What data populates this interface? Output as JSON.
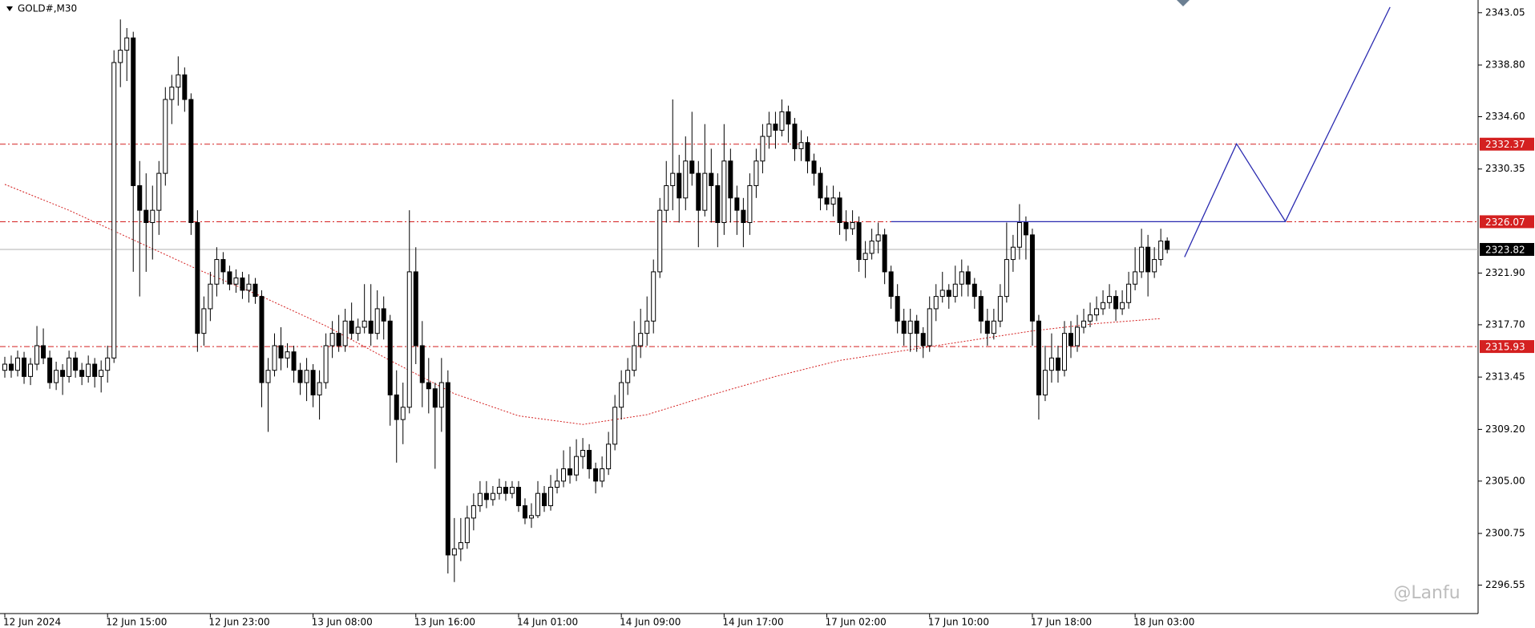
{
  "chart_data": {
    "type": "candlestick",
    "title": "GOLD#,M30",
    "watermark": "@Lanfu",
    "ylim": [
      2294.24,
      2344.08
    ],
    "yticks": [
      2343.05,
      {
        "value": 2338.8,
        "label": "2338.80"
      },
      {
        "value": 2334.6,
        "label": "2334.60"
      },
      2330.35,
      {
        "value": 2321.9,
        "label": "2321.90"
      },
      {
        "value": 2317.7,
        "label": "2317.70"
      },
      2313.45,
      {
        "value": 2309.2,
        "label": "2309.20"
      },
      {
        "value": 2305,
        "label": "2305.00"
      },
      2300.75,
      2296.55
    ],
    "categories": [
      "12 Jun 2024",
      null,
      null,
      null,
      null,
      null,
      null,
      null,
      null,
      null,
      null,
      null,
      null,
      null,
      null,
      null,
      "12 Jun 15:00",
      null,
      null,
      null,
      null,
      null,
      null,
      null,
      null,
      null,
      null,
      null,
      null,
      null,
      null,
      null,
      "12 Jun 23:00",
      null,
      null,
      null,
      null,
      null,
      null,
      null,
      null,
      null,
      null,
      null,
      null,
      null,
      null,
      null,
      "13 Jun 08:00",
      null,
      null,
      null,
      null,
      null,
      null,
      null,
      null,
      null,
      null,
      null,
      null,
      null,
      null,
      null,
      "13 Jun 16:00",
      null,
      null,
      null,
      null,
      null,
      null,
      null,
      null,
      null,
      null,
      null,
      null,
      null,
      null,
      null,
      "14 Jun 01:00",
      null,
      null,
      null,
      null,
      null,
      null,
      null,
      null,
      null,
      null,
      null,
      null,
      null,
      null,
      null,
      "14 Jun 09:00",
      null,
      null,
      null,
      null,
      null,
      null,
      null,
      null,
      null,
      null,
      null,
      null,
      null,
      null,
      null,
      "14 Jun 17:00",
      null,
      null,
      null,
      null,
      null,
      null,
      null,
      null,
      null,
      null,
      null,
      null,
      null,
      null,
      null,
      "17 Jun 02:00",
      null,
      null,
      null,
      null,
      null,
      null,
      null,
      null,
      null,
      null,
      null,
      null,
      null,
      null,
      null,
      "17 Jun 10:00",
      null,
      null,
      null,
      null,
      null,
      null,
      null,
      null,
      null,
      null,
      null,
      null,
      null,
      null,
      null,
      "17 Jun 18:00",
      null,
      null,
      null,
      null,
      null,
      null,
      null,
      null,
      null,
      null,
      null,
      null,
      null,
      null,
      null,
      "18 Jun 03:00",
      null,
      null,
      null,
      null,
      null
    ],
    "ohlc": [
      [
        2314,
        2315.1,
        2313.4,
        2314.5
      ],
      [
        2314.5,
        2315.2,
        2313.4,
        2314
      ],
      [
        2314,
        2315.6,
        2313.5,
        2315
      ],
      [
        2315,
        2315.5,
        2312.9,
        2313.5
      ],
      [
        2313.5,
        2315,
        2312.8,
        2314.5
      ],
      [
        2314.5,
        2317.6,
        2314,
        2316
      ],
      [
        2316,
        2317.4,
        2314.5,
        2315
      ],
      [
        2315,
        2315.6,
        2312.5,
        2313
      ],
      [
        2313,
        2314.7,
        2312.4,
        2314
      ],
      [
        2314,
        2314.5,
        2312,
        2313.5
      ],
      [
        2313.5,
        2315.6,
        2313,
        2315
      ],
      [
        2315,
        2315.5,
        2313.4,
        2314
      ],
      [
        2314,
        2314.6,
        2312.8,
        2313.5
      ],
      [
        2313.5,
        2315.2,
        2313,
        2314.5
      ],
      [
        2314.5,
        2315,
        2312.6,
        2313.5
      ],
      [
        2313.5,
        2314.8,
        2312.2,
        2314
      ],
      [
        2314,
        2316,
        2313,
        2315
      ],
      [
        2315,
        2340,
        2314.6,
        2339
      ],
      [
        2339,
        2342.5,
        2337,
        2340
      ],
      [
        2340,
        2341.8,
        2337.5,
        2341
      ],
      [
        2341,
        2341.5,
        2322,
        2329
      ],
      [
        2329,
        2331,
        2320,
        2327
      ],
      [
        2327,
        2330,
        2322,
        2326
      ],
      [
        2326,
        2329,
        2323,
        2327
      ],
      [
        2327,
        2331,
        2325,
        2330
      ],
      [
        2330,
        2337,
        2329,
        2336
      ],
      [
        2336,
        2338,
        2334,
        2337
      ],
      [
        2337,
        2339.5,
        2335.5,
        2338
      ],
      [
        2338,
        2338.6,
        2335,
        2336
      ],
      [
        2336,
        2336.5,
        2325,
        2326
      ],
      [
        2326,
        2327,
        2315.5,
        2317
      ],
      [
        2317,
        2320,
        2316,
        2319
      ],
      [
        2319,
        2322,
        2318,
        2321
      ],
      [
        2321,
        2324,
        2320,
        2323
      ],
      [
        2323,
        2323.6,
        2321,
        2322
      ],
      [
        2322,
        2322.5,
        2320.5,
        2321
      ],
      [
        2321,
        2322.2,
        2320.3,
        2321.5
      ],
      [
        2321.5,
        2322,
        2319.8,
        2320.5
      ],
      [
        2320.5,
        2321.8,
        2319.5,
        2321
      ],
      [
        2321,
        2321.5,
        2319.4,
        2320
      ],
      [
        2320,
        2320.5,
        2311,
        2313
      ],
      [
        2313,
        2315,
        2309,
        2314
      ],
      [
        2314,
        2317,
        2313.5,
        2316
      ],
      [
        2316,
        2317.5,
        2314,
        2315
      ],
      [
        2315,
        2316.2,
        2314.2,
        2315.5
      ],
      [
        2315.5,
        2316,
        2313,
        2314
      ],
      [
        2314,
        2314.6,
        2312,
        2313
      ],
      [
        2313,
        2315,
        2311.5,
        2314
      ],
      [
        2314,
        2314.5,
        2311,
        2312
      ],
      [
        2312,
        2314,
        2310,
        2313
      ],
      [
        2313,
        2317,
        2312.5,
        2316
      ],
      [
        2316,
        2318,
        2315,
        2317
      ],
      [
        2317,
        2318.5,
        2315.5,
        2316
      ],
      [
        2316,
        2319,
        2315.5,
        2318
      ],
      [
        2318,
        2319.5,
        2316.5,
        2317
      ],
      [
        2317,
        2318.2,
        2316.4,
        2317.5
      ],
      [
        2317.5,
        2321,
        2317,
        2318
      ],
      [
        2318,
        2321,
        2316,
        2317
      ],
      [
        2317,
        2320.5,
        2316.5,
        2319
      ],
      [
        2319,
        2320,
        2316.5,
        2318
      ],
      [
        2318,
        2318.5,
        2309.5,
        2312
      ],
      [
        2312,
        2314,
        2306.5,
        2310
      ],
      [
        2310,
        2313,
        2308,
        2311
      ],
      [
        2311,
        2327,
        2310.5,
        2322
      ],
      [
        2322,
        2324,
        2314.5,
        2316
      ],
      [
        2316,
        2318,
        2311,
        2313
      ],
      [
        2313,
        2315,
        2310.5,
        2312.5
      ],
      [
        2312.5,
        2313,
        2306,
        2311
      ],
      [
        2311,
        2315,
        2309,
        2313
      ],
      [
        2313,
        2314,
        2297.5,
        2299
      ],
      [
        2299,
        2302,
        2296.8,
        2299.5
      ],
      [
        2299.5,
        2302,
        2298.5,
        2300
      ],
      [
        2300,
        2303,
        2299.5,
        2302
      ],
      [
        2302,
        2304,
        2301,
        2303
      ],
      [
        2303,
        2305,
        2302.5,
        2304
      ],
      [
        2304,
        2305,
        2302.8,
        2303.5
      ],
      [
        2303.5,
        2304.6,
        2303,
        2304
      ],
      [
        2304,
        2305.2,
        2303.5,
        2304.5
      ],
      [
        2304.5,
        2305,
        2303.4,
        2304
      ],
      [
        2304,
        2305,
        2303.6,
        2304.5
      ],
      [
        2304.5,
        2305,
        2302.5,
        2303
      ],
      [
        2303,
        2303.6,
        2301.5,
        2302
      ],
      [
        2302,
        2303.2,
        2301.2,
        2302.2
      ],
      [
        2302.2,
        2305,
        2302,
        2304
      ],
      [
        2304,
        2304.6,
        2302.5,
        2303
      ],
      [
        2303,
        2305.5,
        2302.6,
        2304.5
      ],
      [
        2304.5,
        2306,
        2304,
        2305
      ],
      [
        2305,
        2307.5,
        2304.5,
        2306
      ],
      [
        2306,
        2307.8,
        2304.8,
        2305.5
      ],
      [
        2305.5,
        2308.4,
        2305,
        2307
      ],
      [
        2307,
        2308.5,
        2306,
        2307.5
      ],
      [
        2307.5,
        2308,
        2305.2,
        2306
      ],
      [
        2306,
        2306.5,
        2304,
        2305
      ],
      [
        2305,
        2307,
        2304.5,
        2306
      ],
      [
        2306,
        2309,
        2305.5,
        2308
      ],
      [
        2308,
        2312,
        2307.5,
        2311
      ],
      [
        2311,
        2314,
        2310,
        2313
      ],
      [
        2313,
        2315,
        2312,
        2314
      ],
      [
        2314,
        2318,
        2313.5,
        2316
      ],
      [
        2316,
        2319,
        2315,
        2317
      ],
      [
        2317,
        2320,
        2316,
        2318
      ],
      [
        2318,
        2323,
        2317,
        2322
      ],
      [
        2322,
        2328,
        2321.5,
        2327
      ],
      [
        2327,
        2331,
        2326,
        2329
      ],
      [
        2329,
        2336,
        2327,
        2330
      ],
      [
        2330,
        2331.5,
        2326,
        2328
      ],
      [
        2328,
        2333,
        2327,
        2331
      ],
      [
        2331,
        2335,
        2329,
        2330
      ],
      [
        2330,
        2331,
        2324,
        2327
      ],
      [
        2327,
        2334,
        2326.5,
        2330
      ],
      [
        2330,
        2332,
        2326,
        2329
      ],
      [
        2329,
        2330,
        2324,
        2326
      ],
      [
        2326,
        2334,
        2325,
        2331
      ],
      [
        2331,
        2332,
        2326,
        2328
      ],
      [
        2328,
        2329,
        2325,
        2327
      ],
      [
        2327,
        2328,
        2324,
        2326
      ],
      [
        2326,
        2330,
        2325,
        2329
      ],
      [
        2329,
        2332,
        2328,
        2331
      ],
      [
        2331,
        2334,
        2330,
        2333
      ],
      [
        2333,
        2335,
        2332,
        2334
      ],
      [
        2334,
        2335,
        2332,
        2333.5
      ],
      [
        2333.5,
        2336,
        2333,
        2335
      ],
      [
        2335,
        2335.5,
        2332.5,
        2334
      ],
      [
        2334,
        2334.5,
        2331,
        2332
      ],
      [
        2332,
        2333.5,
        2331,
        2332.5
      ],
      [
        2332.5,
        2333,
        2330,
        2331
      ],
      [
        2331,
        2331.6,
        2329,
        2330
      ],
      [
        2330,
        2330.5,
        2327,
        2328
      ],
      [
        2328,
        2329,
        2327,
        2327.5
      ],
      [
        2327.5,
        2329,
        2326.5,
        2328
      ],
      [
        2328,
        2328.5,
        2325,
        2326
      ],
      [
        2326,
        2327,
        2324.5,
        2325.5
      ],
      [
        2325.5,
        2327,
        2325,
        2326
      ],
      [
        2326,
        2326.5,
        2322,
        2323
      ],
      [
        2323,
        2324.5,
        2321.5,
        2323.5
      ],
      [
        2323.5,
        2325.5,
        2323,
        2324.5
      ],
      [
        2324.5,
        2326,
        2323.5,
        2325
      ],
      [
        2325,
        2325.5,
        2321,
        2322
      ],
      [
        2322,
        2322.5,
        2319,
        2320
      ],
      [
        2320,
        2321,
        2317,
        2318
      ],
      [
        2318,
        2319,
        2316,
        2317
      ],
      [
        2317,
        2319,
        2315.5,
        2318
      ],
      [
        2318,
        2318.5,
        2315.5,
        2317
      ],
      [
        2317,
        2317.5,
        2315,
        2316
      ],
      [
        2316,
        2320,
        2315.5,
        2319
      ],
      [
        2319,
        2321,
        2318,
        2320
      ],
      [
        2320,
        2322,
        2319.5,
        2320.5
      ],
      [
        2320.5,
        2321,
        2319,
        2320
      ],
      [
        2320,
        2322.5,
        2319.5,
        2321
      ],
      [
        2321,
        2323,
        2320,
        2322
      ],
      [
        2322,
        2322.5,
        2320,
        2321
      ],
      [
        2321,
        2321.5,
        2319,
        2320
      ],
      [
        2320,
        2320.5,
        2317,
        2318
      ],
      [
        2318,
        2319,
        2316,
        2317
      ],
      [
        2317,
        2319,
        2316.5,
        2318
      ],
      [
        2318,
        2321,
        2317.5,
        2320
      ],
      [
        2320,
        2326,
        2319.5,
        2323
      ],
      [
        2323,
        2325,
        2322,
        2324
      ],
      [
        2324,
        2327.5,
        2323,
        2326
      ],
      [
        2326,
        2326.5,
        2323,
        2325
      ],
      [
        2325,
        2325.5,
        2316,
        2318
      ],
      [
        2318,
        2318.5,
        2310,
        2312
      ],
      [
        2312,
        2316,
        2311.5,
        2314
      ],
      [
        2314,
        2317,
        2313,
        2315
      ],
      [
        2315,
        2316,
        2313,
        2314
      ],
      [
        2314,
        2318,
        2313.5,
        2317
      ],
      [
        2317,
        2318,
        2315,
        2316
      ],
      [
        2316,
        2318.5,
        2315.5,
        2317.5
      ],
      [
        2317.5,
        2319,
        2317,
        2318
      ],
      [
        2318,
        2319.5,
        2317.5,
        2318.5
      ],
      [
        2318.5,
        2320,
        2318,
        2319
      ],
      [
        2319,
        2320.5,
        2318.5,
        2319.5
      ],
      [
        2319.5,
        2321,
        2319,
        2320
      ],
      [
        2320,
        2320.5,
        2318,
        2319
      ],
      [
        2319,
        2320.5,
        2318.5,
        2319.5
      ],
      [
        2319.5,
        2322,
        2319,
        2321
      ],
      [
        2321,
        2324,
        2320.5,
        2322
      ],
      [
        2322,
        2325.5,
        2321.5,
        2324
      ],
      [
        2324,
        2325,
        2320,
        2322
      ],
      [
        2322,
        2324,
        2321.5,
        2323
      ],
      [
        2323,
        2325.5,
        2322.5,
        2324.5
      ],
      [
        2324.5,
        2324.8,
        2323.5,
        2323.82
      ]
    ],
    "ma": {
      "color": "#d42020",
      "x": [
        0,
        10,
        20,
        30,
        40,
        50,
        60,
        70,
        80,
        90,
        100,
        110,
        120,
        130,
        140,
        150,
        160,
        170,
        180
      ],
      "values": [
        2329.1,
        2327.0,
        2324.6,
        2322.2,
        2320.0,
        2317.6,
        2314.8,
        2312.1,
        2310.3,
        2309.6,
        2310.4,
        2312.0,
        2313.5,
        2314.8,
        2315.6,
        2316.4,
        2317.2,
        2317.8,
        2318.2
      ]
    },
    "levels": [
      2332.37,
      2326.07,
      2315.93
    ],
    "level_color": "#d42020",
    "current": 2323.82,
    "projection": {
      "color": "#2a2ab0",
      "x": [
        183.7,
        191.8,
        199.4,
        215.7
      ],
      "values": [
        2323.2,
        2332.4,
        2326.1,
        2343.5
      ]
    },
    "hline": {
      "color": "#2a2ab0",
      "x": [
        138,
        199.4
      ],
      "values": [
        2326.07,
        2326.07
      ]
    }
  }
}
